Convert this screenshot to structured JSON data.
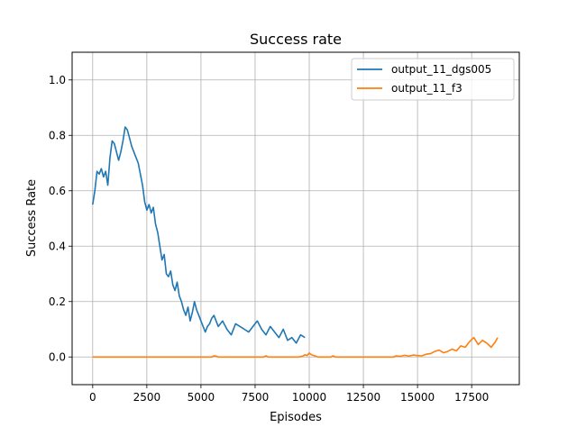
{
  "chart_data": {
    "type": "line",
    "title": "Success rate",
    "xlabel": "Episodes",
    "ylabel": "Success Rate",
    "xlim": [
      -950,
      19700
    ],
    "ylim": [
      -0.1,
      1.1
    ],
    "xticks": [
      0,
      2500,
      5000,
      7500,
      10000,
      12500,
      15000,
      17500
    ],
    "xtick_labels": [
      "0",
      "2500",
      "5000",
      "7500",
      "10000",
      "12500",
      "15000",
      "17500"
    ],
    "yticks": [
      0.0,
      0.2,
      0.4,
      0.6,
      0.8,
      1.0
    ],
    "ytick_labels": [
      "0.0",
      "0.2",
      "0.4",
      "0.6",
      "0.8",
      "1.0"
    ],
    "grid": true,
    "legend_position": "top-right",
    "series": [
      {
        "name": "output_11_dgs005",
        "color": "#1f77b4",
        "x": [
          0,
          100,
          200,
          300,
          400,
          500,
          600,
          700,
          800,
          900,
          1000,
          1100,
          1200,
          1300,
          1400,
          1500,
          1600,
          1700,
          1800,
          1900,
          2000,
          2100,
          2200,
          2300,
          2400,
          2500,
          2600,
          2700,
          2800,
          2900,
          3000,
          3100,
          3200,
          3300,
          3400,
          3500,
          3600,
          3700,
          3800,
          3900,
          4000,
          4100,
          4200,
          4300,
          4400,
          4500,
          4600,
          4700,
          4800,
          4900,
          5000,
          5100,
          5200,
          5300,
          5400,
          5500,
          5600,
          5700,
          5800,
          5900,
          6000,
          6200,
          6400,
          6600,
          6800,
          7000,
          7200,
          7400,
          7600,
          7800,
          8000,
          8200,
          8400,
          8600,
          8800,
          9000,
          9200,
          9400,
          9600,
          9800
        ],
        "y": [
          0.55,
          0.6,
          0.67,
          0.66,
          0.68,
          0.65,
          0.67,
          0.62,
          0.72,
          0.78,
          0.77,
          0.74,
          0.71,
          0.74,
          0.78,
          0.83,
          0.82,
          0.79,
          0.76,
          0.74,
          0.72,
          0.7,
          0.66,
          0.62,
          0.56,
          0.53,
          0.55,
          0.52,
          0.54,
          0.48,
          0.45,
          0.4,
          0.35,
          0.37,
          0.3,
          0.29,
          0.31,
          0.26,
          0.24,
          0.27,
          0.22,
          0.2,
          0.17,
          0.15,
          0.18,
          0.13,
          0.16,
          0.2,
          0.17,
          0.15,
          0.13,
          0.11,
          0.09,
          0.11,
          0.12,
          0.14,
          0.15,
          0.13,
          0.11,
          0.12,
          0.13,
          0.1,
          0.08,
          0.12,
          0.11,
          0.1,
          0.09,
          0.11,
          0.13,
          0.1,
          0.08,
          0.11,
          0.09,
          0.07,
          0.1,
          0.06,
          0.07,
          0.05,
          0.08,
          0.07
        ]
      },
      {
        "name": "output_11_f3",
        "color": "#ff7f0e",
        "x": [
          0,
          1000,
          2000,
          3000,
          4000,
          5000,
          5500,
          5600,
          5700,
          5800,
          6500,
          7500,
          7900,
          8000,
          8100,
          8800,
          9500,
          9700,
          9800,
          9900,
          10000,
          10100,
          10400,
          11000,
          11100,
          11200,
          12000,
          13000,
          13900,
          14000,
          14200,
          14400,
          14600,
          14800,
          15000,
          15200,
          15400,
          15600,
          15800,
          16000,
          16200,
          16400,
          16600,
          16800,
          17000,
          17200,
          17400,
          17600,
          17800,
          18000,
          18200,
          18400,
          18600,
          18700
        ],
        "y": [
          0,
          0,
          0,
          0,
          0,
          0,
          0,
          0.004,
          0.003,
          0,
          0,
          0,
          0,
          0.004,
          0,
          0,
          0,
          0.003,
          0.008,
          0.005,
          0.014,
          0.008,
          0,
          0,
          0.004,
          0,
          0,
          0,
          0,
          0.004,
          0.002,
          0.006,
          0.003,
          0.007,
          0.005,
          0.004,
          0.01,
          0.012,
          0.02,
          0.025,
          0.015,
          0.02,
          0.028,
          0.022,
          0.04,
          0.035,
          0.055,
          0.07,
          0.045,
          0.06,
          0.05,
          0.035,
          0.055,
          0.07
        ]
      }
    ]
  }
}
